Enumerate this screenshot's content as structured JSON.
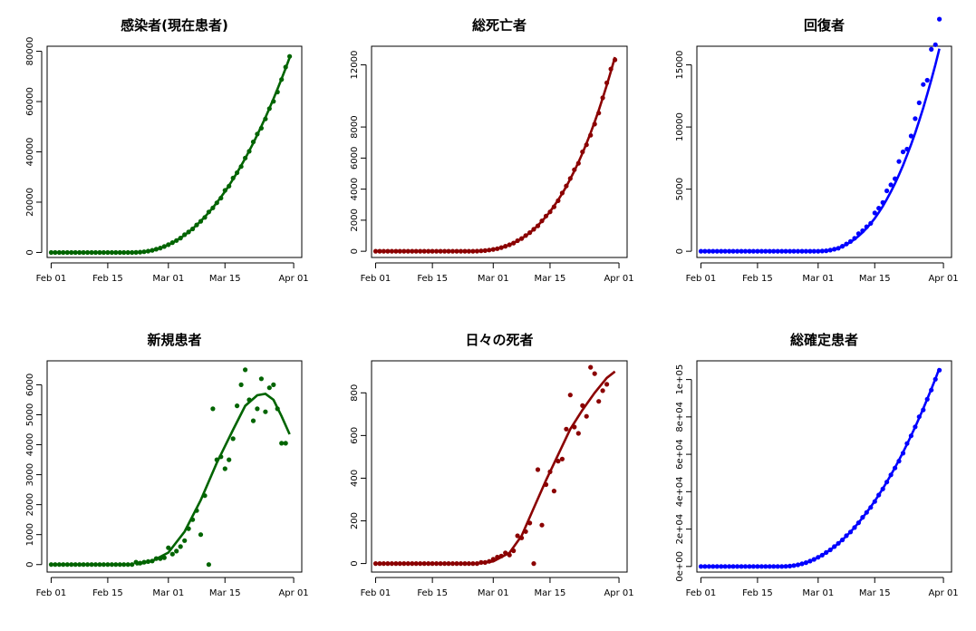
{
  "chart_data": [
    {
      "type": "scatter",
      "title": "感染者(現在患者)",
      "xlabel": "",
      "ylabel": "",
      "x_ticks": [
        "Feb 01",
        "Feb 15",
        "Mar 01",
        "Mar 15",
        "Apr 01"
      ],
      "x_tick_days": [
        0,
        14,
        29,
        43,
        60
      ],
      "xlim": [
        -1,
        62
      ],
      "y_ticks": [
        "0",
        "20000",
        "40000",
        "60000",
        "80000"
      ],
      "y_tick_values": [
        0,
        20000,
        40000,
        60000,
        80000
      ],
      "ylim": [
        -2000,
        82000
      ],
      "color": "#006400",
      "growth": {
        "start": 20,
        "end": 59,
        "max": 77500,
        "power": 2.2
      },
      "scatter_noise": 0.02,
      "curve": "growth"
    },
    {
      "type": "scatter",
      "title": "総死亡者",
      "xlabel": "",
      "ylabel": "",
      "x_ticks": [
        "Feb 01",
        "Feb 15",
        "Mar 01",
        "Mar 15",
        "Apr 01"
      ],
      "x_tick_days": [
        0,
        14,
        29,
        43,
        60
      ],
      "xlim": [
        -1,
        62
      ],
      "y_ticks": [
        "0",
        "2000",
        "4000",
        "6000",
        "8000",
        "12000"
      ],
      "y_tick_values": [
        0,
        2000,
        4000,
        6000,
        8000,
        12000
      ],
      "ylim": [
        -400,
        13200
      ],
      "color": "#8b0000",
      "growth": {
        "start": 22,
        "end": 59,
        "max": 12500,
        "power": 2.8
      },
      "scatter_noise": 0.02,
      "curve": "growth"
    },
    {
      "type": "scatter",
      "title": "回復者",
      "xlabel": "",
      "ylabel": "",
      "x_ticks": [
        "Feb 01",
        "Feb 15",
        "Mar 01",
        "Mar 15",
        "Apr 01"
      ],
      "x_tick_days": [
        0,
        14,
        29,
        43,
        60
      ],
      "xlim": [
        -1,
        62
      ],
      "y_ticks": [
        "0",
        "5000",
        "10000",
        "15000"
      ],
      "y_tick_values": [
        0,
        5000,
        10000,
        15000
      ],
      "ylim": [
        -500,
        16500
      ],
      "color": "#0000ff",
      "growth": {
        "start": 28,
        "end": 59,
        "max": 16300,
        "power": 2.5
      },
      "scatter_noise": 0.1,
      "curve": "growth"
    },
    {
      "type": "scatter",
      "title": "新規患者",
      "xlabel": "",
      "ylabel": "",
      "x_ticks": [
        "Feb 01",
        "Feb 15",
        "Mar 01",
        "Mar 15",
        "Apr 01"
      ],
      "x_tick_days": [
        0,
        14,
        29,
        43,
        60
      ],
      "xlim": [
        -1,
        62
      ],
      "y_ticks": [
        "0",
        "1000",
        "2000",
        "3000",
        "4000",
        "5000",
        "6000"
      ],
      "y_tick_values": [
        0,
        1000,
        2000,
        3000,
        4000,
        5000,
        6000
      ],
      "ylim": [
        -250,
        6800
      ],
      "color": "#006400",
      "points": [
        [
          0,
          0
        ],
        [
          1,
          0
        ],
        [
          2,
          0
        ],
        [
          3,
          0
        ],
        [
          4,
          0
        ],
        [
          5,
          0
        ],
        [
          6,
          0
        ],
        [
          7,
          0
        ],
        [
          8,
          0
        ],
        [
          9,
          0
        ],
        [
          10,
          0
        ],
        [
          11,
          0
        ],
        [
          12,
          0
        ],
        [
          13,
          0
        ],
        [
          14,
          0
        ],
        [
          15,
          0
        ],
        [
          16,
          0
        ],
        [
          17,
          0
        ],
        [
          18,
          0
        ],
        [
          19,
          0
        ],
        [
          20,
          0
        ],
        [
          21,
          80
        ],
        [
          22,
          50
        ],
        [
          23,
          80
        ],
        [
          24,
          100
        ],
        [
          25,
          120
        ],
        [
          26,
          200
        ],
        [
          27,
          200
        ],
        [
          28,
          230
        ],
        [
          29,
          560
        ],
        [
          30,
          350
        ],
        [
          31,
          450
        ],
        [
          32,
          600
        ],
        [
          33,
          800
        ],
        [
          34,
          1200
        ],
        [
          35,
          1500
        ],
        [
          36,
          1800
        ],
        [
          37,
          1000
        ],
        [
          38,
          2300
        ],
        [
          39,
          0
        ],
        [
          40,
          5200
        ],
        [
          41,
          3500
        ],
        [
          42,
          3600
        ],
        [
          43,
          3200
        ],
        [
          44,
          3500
        ],
        [
          45,
          4200
        ],
        [
          46,
          5300
        ],
        [
          47,
          6000
        ],
        [
          48,
          6500
        ],
        [
          49,
          5500
        ],
        [
          50,
          4800
        ],
        [
          51,
          5200
        ],
        [
          52,
          6200
        ],
        [
          53,
          5100
        ],
        [
          54,
          5900
        ],
        [
          55,
          6000
        ],
        [
          56,
          5200
        ],
        [
          57,
          4050
        ],
        [
          58,
          4050
        ]
      ],
      "curve_points": [
        [
          21,
          0
        ],
        [
          25,
          120
        ],
        [
          29,
          400
        ],
        [
          33,
          1100
        ],
        [
          37,
          2150
        ],
        [
          41,
          3400
        ],
        [
          45,
          4500
        ],
        [
          48,
          5300
        ],
        [
          51,
          5650
        ],
        [
          53,
          5700
        ],
        [
          55,
          5500
        ],
        [
          57,
          4950
        ],
        [
          59,
          4350
        ]
      ],
      "curve": "custom"
    },
    {
      "type": "scatter",
      "title": "日々の死者",
      "xlabel": "",
      "ylabel": "",
      "x_ticks": [
        "Feb 01",
        "Feb 15",
        "Mar 01",
        "Mar 15",
        "Apr 01"
      ],
      "x_tick_days": [
        0,
        14,
        29,
        43,
        60
      ],
      "xlim": [
        -1,
        62
      ],
      "y_ticks": [
        "0",
        "200",
        "400",
        "600",
        "800"
      ],
      "y_tick_values": [
        0,
        200,
        400,
        600,
        800
      ],
      "ylim": [
        -40,
        950
      ],
      "color": "#8b0000",
      "points": [
        [
          0,
          0
        ],
        [
          1,
          0
        ],
        [
          2,
          0
        ],
        [
          3,
          0
        ],
        [
          4,
          0
        ],
        [
          5,
          0
        ],
        [
          6,
          0
        ],
        [
          7,
          0
        ],
        [
          8,
          0
        ],
        [
          9,
          0
        ],
        [
          10,
          0
        ],
        [
          11,
          0
        ],
        [
          12,
          0
        ],
        [
          13,
          0
        ],
        [
          14,
          0
        ],
        [
          15,
          0
        ],
        [
          16,
          0
        ],
        [
          17,
          0
        ],
        [
          18,
          0
        ],
        [
          19,
          0
        ],
        [
          20,
          0
        ],
        [
          21,
          0
        ],
        [
          22,
          0
        ],
        [
          23,
          0
        ],
        [
          24,
          0
        ],
        [
          25,
          0
        ],
        [
          26,
          5
        ],
        [
          27,
          5
        ],
        [
          28,
          10
        ],
        [
          29,
          20
        ],
        [
          30,
          30
        ],
        [
          31,
          35
        ],
        [
          32,
          50
        ],
        [
          33,
          40
        ],
        [
          34,
          60
        ],
        [
          35,
          130
        ],
        [
          36,
          120
        ],
        [
          37,
          150
        ],
        [
          38,
          190
        ],
        [
          39,
          0
        ],
        [
          40,
          440
        ],
        [
          41,
          180
        ],
        [
          42,
          370
        ],
        [
          43,
          430
        ],
        [
          44,
          340
        ],
        [
          45,
          480
        ],
        [
          46,
          490
        ],
        [
          47,
          630
        ],
        [
          48,
          790
        ],
        [
          49,
          640
        ],
        [
          50,
          610
        ],
        [
          51,
          740
        ],
        [
          52,
          690
        ],
        [
          53,
          920
        ],
        [
          54,
          890
        ],
        [
          55,
          760
        ],
        [
          56,
          810
        ],
        [
          57,
          840
        ]
      ],
      "curve_points": [
        [
          25,
          0
        ],
        [
          29,
          10
        ],
        [
          33,
          50
        ],
        [
          36,
          130
        ],
        [
          39,
          260
        ],
        [
          42,
          390
        ],
        [
          45,
          510
        ],
        [
          48,
          630
        ],
        [
          51,
          720
        ],
        [
          54,
          800
        ],
        [
          57,
          870
        ],
        [
          59,
          900
        ]
      ],
      "curve": "custom"
    },
    {
      "type": "scatter",
      "title": "総確定患者",
      "xlabel": "",
      "ylabel": "",
      "x_ticks": [
        "Feb 01",
        "Feb 15",
        "Mar 01",
        "Mar 15",
        "Apr 01"
      ],
      "x_tick_days": [
        0,
        14,
        29,
        43,
        60
      ],
      "xlim": [
        -1,
        62
      ],
      "y_ticks": [
        "0e+00",
        "2e+04",
        "4e+04",
        "6e+04",
        "8e+04",
        "1e+05"
      ],
      "y_tick_values": [
        0,
        20000,
        40000,
        60000,
        80000,
        100000
      ],
      "ylim": [
        -3000,
        110000
      ],
      "color": "#0000ff",
      "growth": {
        "start": 20,
        "end": 59,
        "max": 106000,
        "power": 2.1
      },
      "scatter_noise": 0.01,
      "curve": "growth"
    }
  ]
}
